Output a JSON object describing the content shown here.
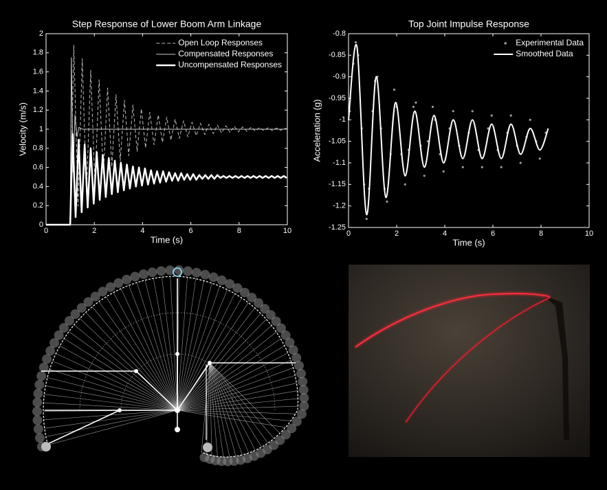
{
  "chart_data": [
    {
      "type": "line",
      "title": "Step Response of Lower Boom Arm Linkage",
      "xlabel": "Time (s)",
      "ylabel": "Velocity (m/s)",
      "xlim": [
        0,
        10
      ],
      "ylim": [
        0,
        2
      ],
      "xticks": [
        0,
        2,
        4,
        6,
        8,
        10
      ],
      "yticks": [
        0,
        0.2,
        0.4,
        0.6,
        0.8,
        1,
        1.2,
        1.4,
        1.6,
        1.8,
        2
      ],
      "legend": "upper right",
      "series": [
        {
          "name": "Open Loop Responses",
          "color": "#bbbbbb",
          "linestyle": "dashed",
          "linewidth": 1,
          "x": [
            0,
            1.0,
            1.15,
            1.325,
            1.5,
            1.675,
            1.85,
            2.025,
            2.2,
            2.375,
            2.55,
            2.725,
            2.9,
            3.075,
            3.25,
            3.425,
            3.6,
            3.775,
            3.95,
            4.125,
            4.3,
            4.475,
            4.65,
            4.825,
            5.0,
            5.175,
            5.35,
            5.525,
            5.7,
            5.875,
            6.05,
            6.225,
            6.4,
            6.575,
            6.75,
            6.925,
            7.1,
            7.275,
            7.45,
            7.625,
            7.8,
            7.975,
            8.15,
            8.325,
            8.5,
            8.675,
            8.85,
            9.025,
            9.2,
            9.375,
            9.55,
            9.725,
            9.9,
            10
          ],
          "values": [
            0,
            0,
            1.88,
            0.195,
            1.737,
            0.326,
            1.617,
            0.435,
            1.517,
            0.527,
            1.432,
            0.604,
            1.362,
            0.669,
            1.303,
            0.723,
            1.254,
            0.768,
            1.213,
            0.805,
            1.178,
            0.837,
            1.149,
            0.863,
            1.125,
            0.886,
            1.105,
            0.904,
            1.088,
            0.92,
            1.073,
            0.933,
            1.062,
            0.944,
            1.052,
            0.953,
            1.043,
            0.96,
            1.036,
            0.967,
            1.03,
            0.972,
            1.025,
            0.977,
            1.021,
            0.981,
            1.018,
            0.984,
            1.015,
            0.987,
            1.012,
            0.989,
            1.01,
            1
          ]
        },
        {
          "name": "Compensated Responses",
          "color": "#cccccc",
          "linestyle": "solid",
          "linewidth": 1,
          "x": [
            0,
            1.0,
            1.05,
            1.12,
            1.2,
            1.28,
            1.36,
            1.5,
            10
          ],
          "values": [
            0,
            0,
            1.75,
            0.55,
            1.15,
            0.92,
            1.02,
            1,
            1
          ]
        },
        {
          "name": "Uncompensated Responses",
          "color": "#ffffff",
          "linestyle": "solid",
          "linewidth": 2.5,
          "x": [
            0,
            1.0,
            1.1,
            1.225,
            1.35,
            1.475,
            1.6,
            1.725,
            1.85,
            1.975,
            2.1,
            2.225,
            2.35,
            2.475,
            2.6,
            2.725,
            2.85,
            2.975,
            3.1,
            3.225,
            3.35,
            3.475,
            3.6,
            3.725,
            3.85,
            3.975,
            4.1,
            4.225,
            4.35,
            4.475,
            4.6,
            4.725,
            4.85,
            4.975,
            5.1,
            5.225,
            5.35,
            5.475,
            5.6,
            5.725,
            5.85,
            5.975,
            6.1,
            6.225,
            6.35,
            6.475,
            6.6,
            6.725,
            6.85,
            6.975,
            7.1,
            7.225,
            7.35,
            7.475,
            7.6,
            7.725,
            7.85,
            7.975,
            8.1,
            8.225,
            8.35,
            8.475,
            8.6,
            8.725,
            8.85,
            8.975,
            9.1,
            9.225,
            9.35,
            9.475,
            9.6,
            9.725,
            9.85,
            9.975
          ],
          "values": [
            0,
            0,
            0.95,
            0.08,
            0.89,
            0.13,
            0.84,
            0.18,
            0.8,
            0.22,
            0.76,
            0.26,
            0.73,
            0.29,
            0.7,
            0.32,
            0.67,
            0.34,
            0.65,
            0.36,
            0.63,
            0.38,
            0.61,
            0.4,
            0.6,
            0.41,
            0.59,
            0.42,
            0.57,
            0.43,
            0.56,
            0.44,
            0.56,
            0.45,
            0.55,
            0.46,
            0.54,
            0.46,
            0.54,
            0.47,
            0.53,
            0.47,
            0.53,
            0.47,
            0.52,
            0.48,
            0.52,
            0.48,
            0.52,
            0.48,
            0.52,
            0.49,
            0.51,
            0.49,
            0.51,
            0.49,
            0.51,
            0.49,
            0.51,
            0.49,
            0.51,
            0.49,
            0.51,
            0.49,
            0.51,
            0.49,
            0.51,
            0.49,
            0.51,
            0.49,
            0.51,
            0.49,
            0.51,
            0.49
          ]
        }
      ]
    },
    {
      "type": "line",
      "title": "Top Joint Impulse Response",
      "xlabel": "Time (s)",
      "ylabel": "Acceleration (g)",
      "xlim": [
        0,
        10
      ],
      "ylim": [
        -1.25,
        -0.8
      ],
      "xticks": [
        0,
        2,
        4,
        6,
        8,
        10
      ],
      "yticks": [
        -0.8,
        -0.85,
        -0.9,
        -0.95,
        -1,
        -1.05,
        -1.1,
        -1.15,
        -1.2,
        -1.25
      ],
      "legend": "upper right",
      "series": [
        {
          "name": "Experimental Data",
          "type": "scatter",
          "color": "#9a9a9a",
          "x": [
            0.05,
            0.2,
            0.3,
            0.4,
            0.55,
            0.65,
            0.75,
            0.85,
            1.0,
            1.1,
            1.2,
            1.35,
            1.5,
            1.6,
            1.75,
            1.9,
            2.0,
            2.2,
            2.35,
            2.5,
            2.7,
            2.8,
            3.0,
            3.15,
            3.3,
            3.5,
            3.6,
            3.8,
            3.95,
            4.2,
            4.35,
            4.6,
            4.75,
            5.0,
            5.15,
            5.4,
            5.55,
            5.8,
            5.95,
            6.2,
            6.35,
            6.6,
            6.75,
            7.0,
            7.15,
            7.4,
            7.55,
            7.8,
            7.95,
            8.2
          ],
          "values": [
            -0.98,
            -0.87,
            -0.82,
            -0.85,
            -1.02,
            -1.15,
            -1.23,
            -1.16,
            -0.98,
            -0.91,
            -0.9,
            -1.02,
            -1.16,
            -1.19,
            -1.08,
            -0.93,
            -0.97,
            -1.08,
            -1.15,
            -1.07,
            -0.97,
            -0.96,
            -1.06,
            -1.13,
            -1.05,
            -0.97,
            -1.0,
            -1.08,
            -1.12,
            -1.02,
            -0.98,
            -1.06,
            -1.11,
            -1.03,
            -0.98,
            -1.07,
            -1.11,
            -1.02,
            -0.99,
            -1.07,
            -1.11,
            -1.03,
            -0.99,
            -1.06,
            -1.1,
            -1.04,
            -1.0,
            -1.05,
            -1.09,
            -1.03
          ]
        },
        {
          "name": "Smoothed Data",
          "type": "line",
          "smooth": true,
          "color": "#ffffff",
          "linestyle": "solid",
          "linewidth": 2,
          "x": [
            0,
            0.35,
            0.75,
            1.15,
            1.55,
            1.95,
            2.35,
            2.75,
            3.15,
            3.55,
            3.95,
            4.35,
            4.75,
            5.15,
            5.55,
            5.95,
            6.35,
            6.75,
            7.15,
            7.55,
            7.95,
            8.3
          ],
          "values": [
            -1.0,
            -0.83,
            -1.22,
            -0.9,
            -1.18,
            -0.96,
            -1.13,
            -0.98,
            -1.11,
            -0.99,
            -1.1,
            -1.0,
            -1.09,
            -1.0,
            -1.09,
            -1.01,
            -1.09,
            -1.01,
            -1.08,
            -1.02,
            -1.07,
            -1.02
          ]
        }
      ]
    }
  ]
}
